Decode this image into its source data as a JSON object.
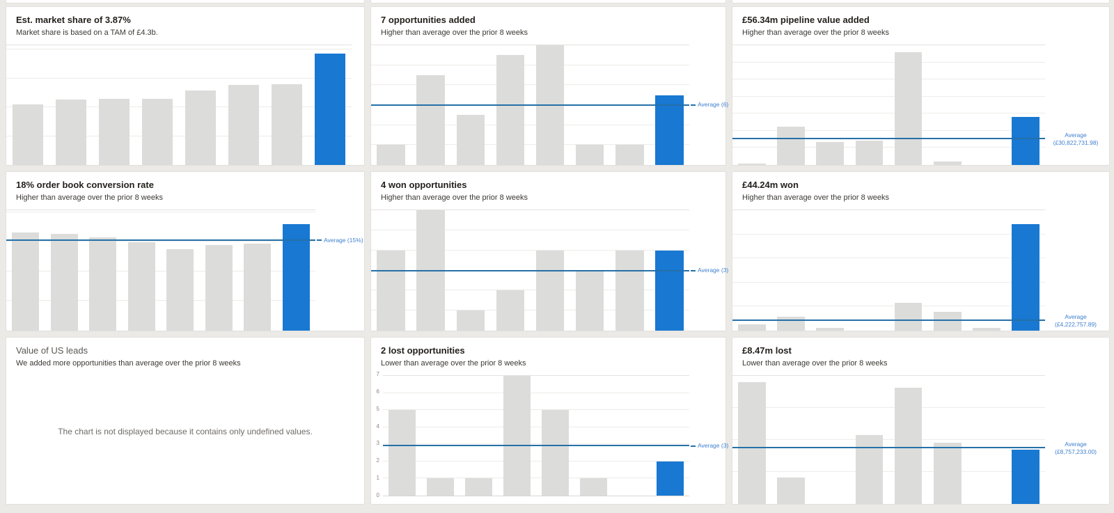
{
  "colors": {
    "bar": "#dcdcda",
    "current_bar": "#1878d2",
    "avg_line": "#2470a8",
    "avg_label_text": "#3f80cf",
    "grid": "#edecea",
    "card_bg": "#ffffff",
    "page_bg": "#eceae7"
  },
  "dashboard": {
    "cards": [
      {
        "title": "Est. market share of 3.87%",
        "subtitle": "Market share is based on a TAM of £4.3b."
      },
      {
        "title": "7 opportunities added",
        "subtitle": "Higher than average over the prior 8 weeks"
      },
      {
        "title": "£56.34m pipeline value added",
        "subtitle": "Higher than average over the prior 8 weeks"
      },
      {
        "title": "18% order book conversion rate",
        "subtitle": "Higher than average over the prior 8 weeks"
      },
      {
        "title": "4 won opportunities",
        "subtitle": "Higher than average over the prior 8 weeks"
      },
      {
        "title": "£44.24m won",
        "subtitle": "Higher than average over the prior 8 weeks"
      },
      {
        "title": "Value of US leads",
        "subtitle": "We added more opportunities than average over the prior 8 weeks",
        "empty_message": "The chart is not displayed because it contains only undefined values."
      },
      {
        "title": "2 lost opportunities",
        "subtitle": "Lower than average over the prior 8 weeks"
      },
      {
        "title": "£8.47m lost",
        "subtitle": "Lower than average over the prior 8 weeks"
      }
    ]
  },
  "chart_data": [
    {
      "type": "bar",
      "title": "Est. market share of 3.87%",
      "values": [
        2.11,
        2.28,
        2.29,
        2.29,
        2.57,
        2.77,
        2.79,
        3.87
      ],
      "current_index": 7,
      "ylim": 4.15,
      "grid_step": 1,
      "average": null
    },
    {
      "type": "bar",
      "title": "7 opportunities added",
      "values": [
        2,
        9,
        5,
        11,
        12,
        2,
        2,
        7
      ],
      "current_index": 7,
      "ylim": 12,
      "grid_step": 2,
      "average": {
        "value": 6,
        "label": "Average (6)"
      }
    },
    {
      "type": "bar",
      "title": "£56.34m pipeline value added (£ millions)",
      "values": [
        1.3,
        44.6,
        27.0,
        28.8,
        132.0,
        3.8,
        0,
        56.34
      ],
      "current_index": 7,
      "ylim": 140,
      "grid_step": 20,
      "average": {
        "value": 30.82,
        "label_lines": [
          "Average",
          "(£30,822,731.98)"
        ]
      }
    },
    {
      "type": "bar",
      "title": "18% order book conversion rate (%)",
      "values": [
        16.6,
        16.3,
        15.7,
        14.9,
        13.7,
        14.4,
        14.7,
        18
      ],
      "current_index": 7,
      "ylim": 20.3,
      "grid_step": 5,
      "average": {
        "value": 15.2,
        "label": "Average (15%)"
      }
    },
    {
      "type": "bar",
      "title": "4 won opportunities",
      "values": [
        4,
        6,
        1,
        2,
        4,
        3,
        4,
        4
      ],
      "current_index": 7,
      "ylim": 6,
      "grid_step": 1,
      "average": {
        "value": 3,
        "label": "Average (3)"
      }
    },
    {
      "type": "bar",
      "title": "£44.24m won (£ millions)",
      "values": [
        2.6,
        5.9,
        1.1,
        0,
        11.7,
        7.8,
        1.3,
        44.24
      ],
      "current_index": 7,
      "ylim": 50,
      "grid_step": 10,
      "average": {
        "value": 4.22,
        "label_lines": [
          "Average",
          "(£4,222,757.89)"
        ]
      }
    },
    {
      "type": "empty",
      "title": "Value of US leads",
      "message": "The chart is not displayed because it contains only undefined values."
    },
    {
      "type": "bar",
      "title": "2 lost opportunities",
      "values": [
        5,
        1,
        1,
        7,
        5,
        1,
        0,
        2
      ],
      "current_index": 7,
      "ylim": 7,
      "grid_step": 1,
      "y_ticks": [
        0,
        1,
        2,
        3,
        4,
        5,
        6,
        7
      ],
      "average": {
        "value": 2.92,
        "label": "Average (3)"
      }
    },
    {
      "type": "bar",
      "title": "£8.47m lost (£ millions)",
      "values": [
        19.0,
        4.1,
        0,
        10.8,
        18.1,
        9.6,
        0,
        8.47
      ],
      "current_index": 7,
      "ylim": 20,
      "grid_step": 5,
      "average": {
        "value": 8.76,
        "label_lines": [
          "Average",
          "(£8,757,233.00)"
        ]
      }
    }
  ]
}
